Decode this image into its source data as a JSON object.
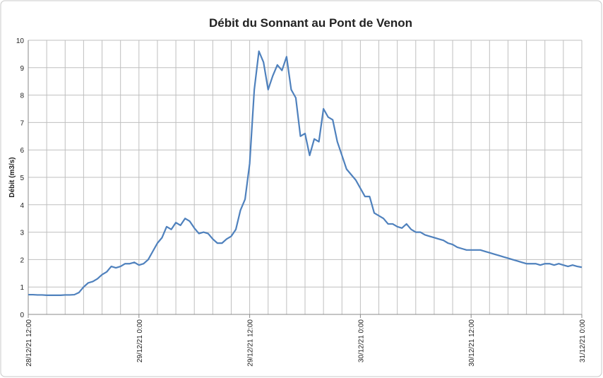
{
  "chart_data": {
    "type": "line",
    "title": "Débit du Sonnant au Pont de Venon",
    "y_label": "Débit (m3/s)",
    "categories": [
      "28/12/21 12:00",
      null,
      null,
      null,
      null,
      null,
      null,
      null,
      null,
      null,
      null,
      null,
      null,
      null,
      null,
      null,
      null,
      null,
      null,
      null,
      null,
      null,
      null,
      null,
      "29/12/21 0:00",
      null,
      null,
      null,
      null,
      null,
      null,
      null,
      null,
      null,
      null,
      null,
      null,
      null,
      null,
      null,
      null,
      null,
      null,
      null,
      null,
      null,
      null,
      null,
      "29/12/21 12:00",
      null,
      null,
      null,
      null,
      null,
      null,
      null,
      null,
      null,
      null,
      null,
      null,
      null,
      null,
      null,
      null,
      null,
      null,
      null,
      null,
      null,
      null,
      null,
      "30/12/21 0:00",
      null,
      null,
      null,
      null,
      null,
      null,
      null,
      null,
      null,
      null,
      null,
      null,
      null,
      null,
      null,
      null,
      null,
      null,
      null,
      null,
      null,
      null,
      null,
      "30/12/21 12:00",
      null,
      null,
      null,
      null,
      null,
      null,
      null,
      null,
      null,
      null,
      null,
      null,
      null,
      null,
      null,
      null,
      null,
      null,
      null,
      null,
      null,
      null,
      null,
      "31/12/21 0:00"
    ],
    "series": [
      {
        "name": "Débit",
        "color": "#4f81bd",
        "values": [
          0.72,
          0.72,
          0.71,
          0.71,
          0.7,
          0.7,
          0.7,
          0.7,
          0.71,
          0.71,
          0.72,
          0.8,
          1.0,
          1.15,
          1.2,
          1.3,
          1.45,
          1.55,
          1.75,
          1.7,
          1.75,
          1.85,
          1.85,
          1.9,
          1.8,
          1.85,
          2.0,
          2.3,
          2.6,
          2.8,
          3.2,
          3.1,
          3.35,
          3.25,
          3.5,
          3.4,
          3.15,
          2.95,
          3.0,
          2.95,
          2.75,
          2.6,
          2.6,
          2.75,
          2.85,
          3.1,
          3.8,
          4.2,
          5.5,
          8.2,
          9.6,
          9.2,
          8.2,
          8.7,
          9.1,
          8.9,
          9.4,
          8.2,
          7.9,
          6.5,
          6.6,
          5.8,
          6.4,
          6.3,
          7.5,
          7.2,
          7.1,
          6.3,
          5.8,
          5.3,
          5.1,
          4.9,
          4.6,
          4.3,
          4.3,
          3.7,
          3.6,
          3.5,
          3.3,
          3.3,
          3.2,
          3.15,
          3.3,
          3.1,
          3.0,
          3.0,
          2.9,
          2.85,
          2.8,
          2.75,
          2.7,
          2.6,
          2.55,
          2.45,
          2.4,
          2.35,
          2.35,
          2.35,
          2.35,
          2.3,
          2.25,
          2.2,
          2.15,
          2.1,
          2.05,
          2.0,
          1.95,
          1.9,
          1.85,
          1.85,
          1.85,
          1.8,
          1.85,
          1.85,
          1.8,
          1.85,
          1.8,
          1.75,
          1.8,
          1.75,
          1.72
        ]
      }
    ],
    "ylim": [
      0,
      10
    ],
    "yticks": [
      0,
      1,
      2,
      3,
      4,
      5,
      6,
      7,
      8,
      9,
      10
    ],
    "grid": true
  }
}
